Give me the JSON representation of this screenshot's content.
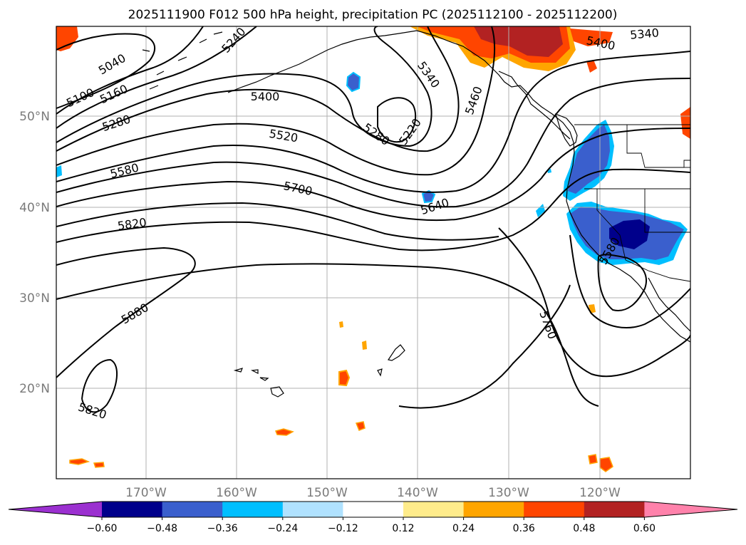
{
  "title": "2025111900 F012 500 hPa height, precipitation PC (2025112100 - 2025112200)",
  "map": {
    "lat_labels": [
      "50°N",
      "40°N",
      "30°N",
      "20°N"
    ],
    "lon_labels": [
      "170°W",
      "160°W",
      "150°W",
      "140°W",
      "130°W",
      "120°W"
    ],
    "grid": true
  },
  "contour_labels": [
    "5040",
    "5100",
    "5160",
    "5240",
    "5280",
    "5400",
    "5520",
    "5580",
    "5700",
    "5820",
    "5880",
    "5340",
    "5280",
    "5220",
    "5460",
    "5640",
    "5400",
    "5340",
    "5760",
    "5820",
    "5580"
  ],
  "colorbar": {
    "extend": "both",
    "ticks": [
      "−0.60",
      "−0.48",
      "−0.36",
      "−0.24",
      "−0.12",
      "0.12",
      "0.24",
      "0.36",
      "0.48",
      "0.60"
    ],
    "colors": [
      "#9b30d0",
      "#00008b",
      "#3a5fcd",
      "#00bfff",
      "#b0e2ff",
      "#ffffff",
      "#ffec8b",
      "#ffa500",
      "#ff4500",
      "#b22222",
      "#ff82ab"
    ]
  }
}
